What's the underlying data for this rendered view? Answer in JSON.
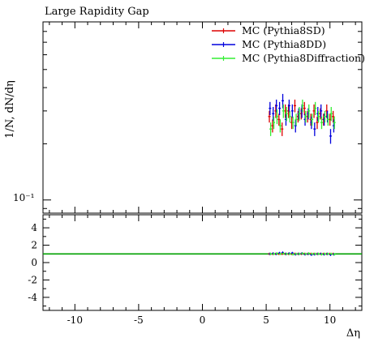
{
  "chart_data": {
    "type": "scatter",
    "title": "Large Rapidity Gap",
    "ylabel": "1/N, dN/dη",
    "xlabel": "Δη",
    "xlim": [
      -12.5,
      12.5
    ],
    "ylog": true,
    "ylim": [
      0.085,
      0.9
    ],
    "main_ytick_labels": [
      "10⁻¹"
    ],
    "ratio_ylim": [
      -5.5,
      5.5
    ],
    "ratio_ticks": [
      4,
      2,
      0,
      -2,
      -4
    ],
    "ratio_tick_labels": [
      "4",
      "2",
      "0",
      "-2",
      "-4"
    ],
    "xticks": [
      -10,
      -5,
      0,
      5,
      10
    ],
    "xtick_labels": [
      "-10",
      "-5",
      "0",
      "5",
      "10"
    ],
    "reference_line_color": "#00a000",
    "legend_position": "top-right",
    "series": [
      {
        "name": "MC (Pythia8SD)",
        "color": "#dd0000",
        "x": [
          5.25,
          5.5,
          5.75,
          6.0,
          6.25,
          6.5,
          6.75,
          7.0,
          7.25,
          7.5,
          7.75,
          8.0,
          8.25,
          8.5,
          8.75,
          9.0,
          9.25,
          9.5,
          9.75,
          10.0,
          10.25
        ],
        "y": [
          0.28,
          0.25,
          0.3,
          0.27,
          0.24,
          0.3,
          0.3,
          0.26,
          0.32,
          0.28,
          0.29,
          0.31,
          0.28,
          0.27,
          0.3,
          0.26,
          0.29,
          0.27,
          0.3,
          0.27,
          0.28
        ],
        "err": [
          0.02,
          0.02,
          0.025,
          0.02,
          0.02,
          0.025,
          0.025,
          0.02,
          0.025,
          0.02,
          0.02,
          0.025,
          0.02,
          0.02,
          0.025,
          0.02,
          0.02,
          0.02,
          0.025,
          0.02,
          0.02
        ],
        "ratio": [
          1.0,
          1.0,
          1.0,
          1.0,
          1.0,
          1.0,
          1.0,
          1.0,
          1.0,
          1.0,
          1.0,
          1.0,
          1.0,
          1.0,
          1.0,
          1.0,
          1.0,
          1.0,
          1.0,
          1.0,
          1.0
        ]
      },
      {
        "name": "MC (Pythia8DD)",
        "color": "#0000dd",
        "x": [
          5.3,
          5.55,
          5.8,
          6.05,
          6.3,
          6.55,
          6.8,
          7.05,
          7.3,
          7.55,
          7.8,
          8.05,
          8.3,
          8.55,
          8.8,
          9.05,
          9.3,
          9.55,
          9.8,
          10.05,
          10.3
        ],
        "y": [
          0.31,
          0.29,
          0.32,
          0.31,
          0.34,
          0.27,
          0.32,
          0.3,
          0.25,
          0.29,
          0.3,
          0.27,
          0.29,
          0.26,
          0.24,
          0.29,
          0.3,
          0.27,
          0.28,
          0.22,
          0.25
        ],
        "err": [
          0.025,
          0.025,
          0.025,
          0.025,
          0.03,
          0.02,
          0.025,
          0.025,
          0.02,
          0.02,
          0.025,
          0.02,
          0.02,
          0.02,
          0.02,
          0.025,
          0.025,
          0.02,
          0.02,
          0.02,
          0.02
        ],
        "ratio": [
          1.0,
          1.05,
          1.0,
          1.1,
          1.15,
          1.0,
          1.05,
          1.1,
          0.95,
          1.0,
          1.05,
          0.95,
          1.0,
          0.9,
          0.95,
          1.0,
          1.0,
          0.95,
          1.0,
          0.9,
          0.95
        ]
      },
      {
        "name": "MC (Pythia8Diffraction)",
        "color": "#33ee33",
        "x": [
          5.35,
          5.6,
          5.85,
          6.1,
          6.35,
          6.6,
          6.85,
          7.1,
          7.35,
          7.6,
          7.85,
          8.1,
          8.35,
          8.6,
          8.85,
          9.1,
          9.35,
          9.6,
          9.85,
          10.1,
          10.35
        ],
        "y": [
          0.24,
          0.26,
          0.28,
          0.25,
          0.3,
          0.29,
          0.28,
          0.26,
          0.27,
          0.29,
          0.32,
          0.28,
          0.3,
          0.27,
          0.31,
          0.28,
          0.26,
          0.28,
          0.27,
          0.29,
          0.26
        ],
        "err": [
          0.02,
          0.02,
          0.025,
          0.02,
          0.025,
          0.025,
          0.02,
          0.02,
          0.02,
          0.025,
          0.025,
          0.02,
          0.025,
          0.02,
          0.025,
          0.02,
          0.02,
          0.02,
          0.02,
          0.025,
          0.02
        ],
        "ratio": [
          1.0,
          1.0,
          1.05,
          1.0,
          1.05,
          1.0,
          1.0,
          0.95,
          1.0,
          1.0,
          1.05,
          1.0,
          1.05,
          1.0,
          1.0,
          1.0,
          0.95,
          1.0,
          1.0,
          1.0,
          0.95
        ]
      }
    ]
  }
}
